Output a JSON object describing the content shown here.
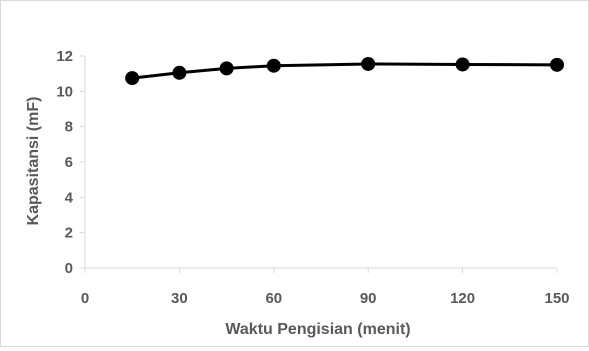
{
  "chart_data": {
    "type": "line",
    "title": "",
    "xlabel": "Waktu Pengisian (menit)",
    "ylabel": "Kapasitansi (mF)",
    "xlim": [
      0,
      150
    ],
    "ylim": [
      0,
      12
    ],
    "xticks": [
      0,
      30,
      60,
      90,
      120,
      150
    ],
    "yticks": [
      0,
      2,
      4,
      6,
      8,
      10,
      12
    ],
    "grid": false,
    "legend": "none",
    "series": [
      {
        "x": [
          15,
          30,
          45,
          60,
          90,
          120,
          150
        ],
        "y": [
          10.75,
          11.05,
          11.3,
          11.45,
          11.55,
          11.52,
          11.5
        ],
        "color": "#000000",
        "marker": "circle"
      }
    ]
  },
  "colors": {
    "axis": "#d9d9d9",
    "text": "#595959",
    "series": "#000000"
  }
}
